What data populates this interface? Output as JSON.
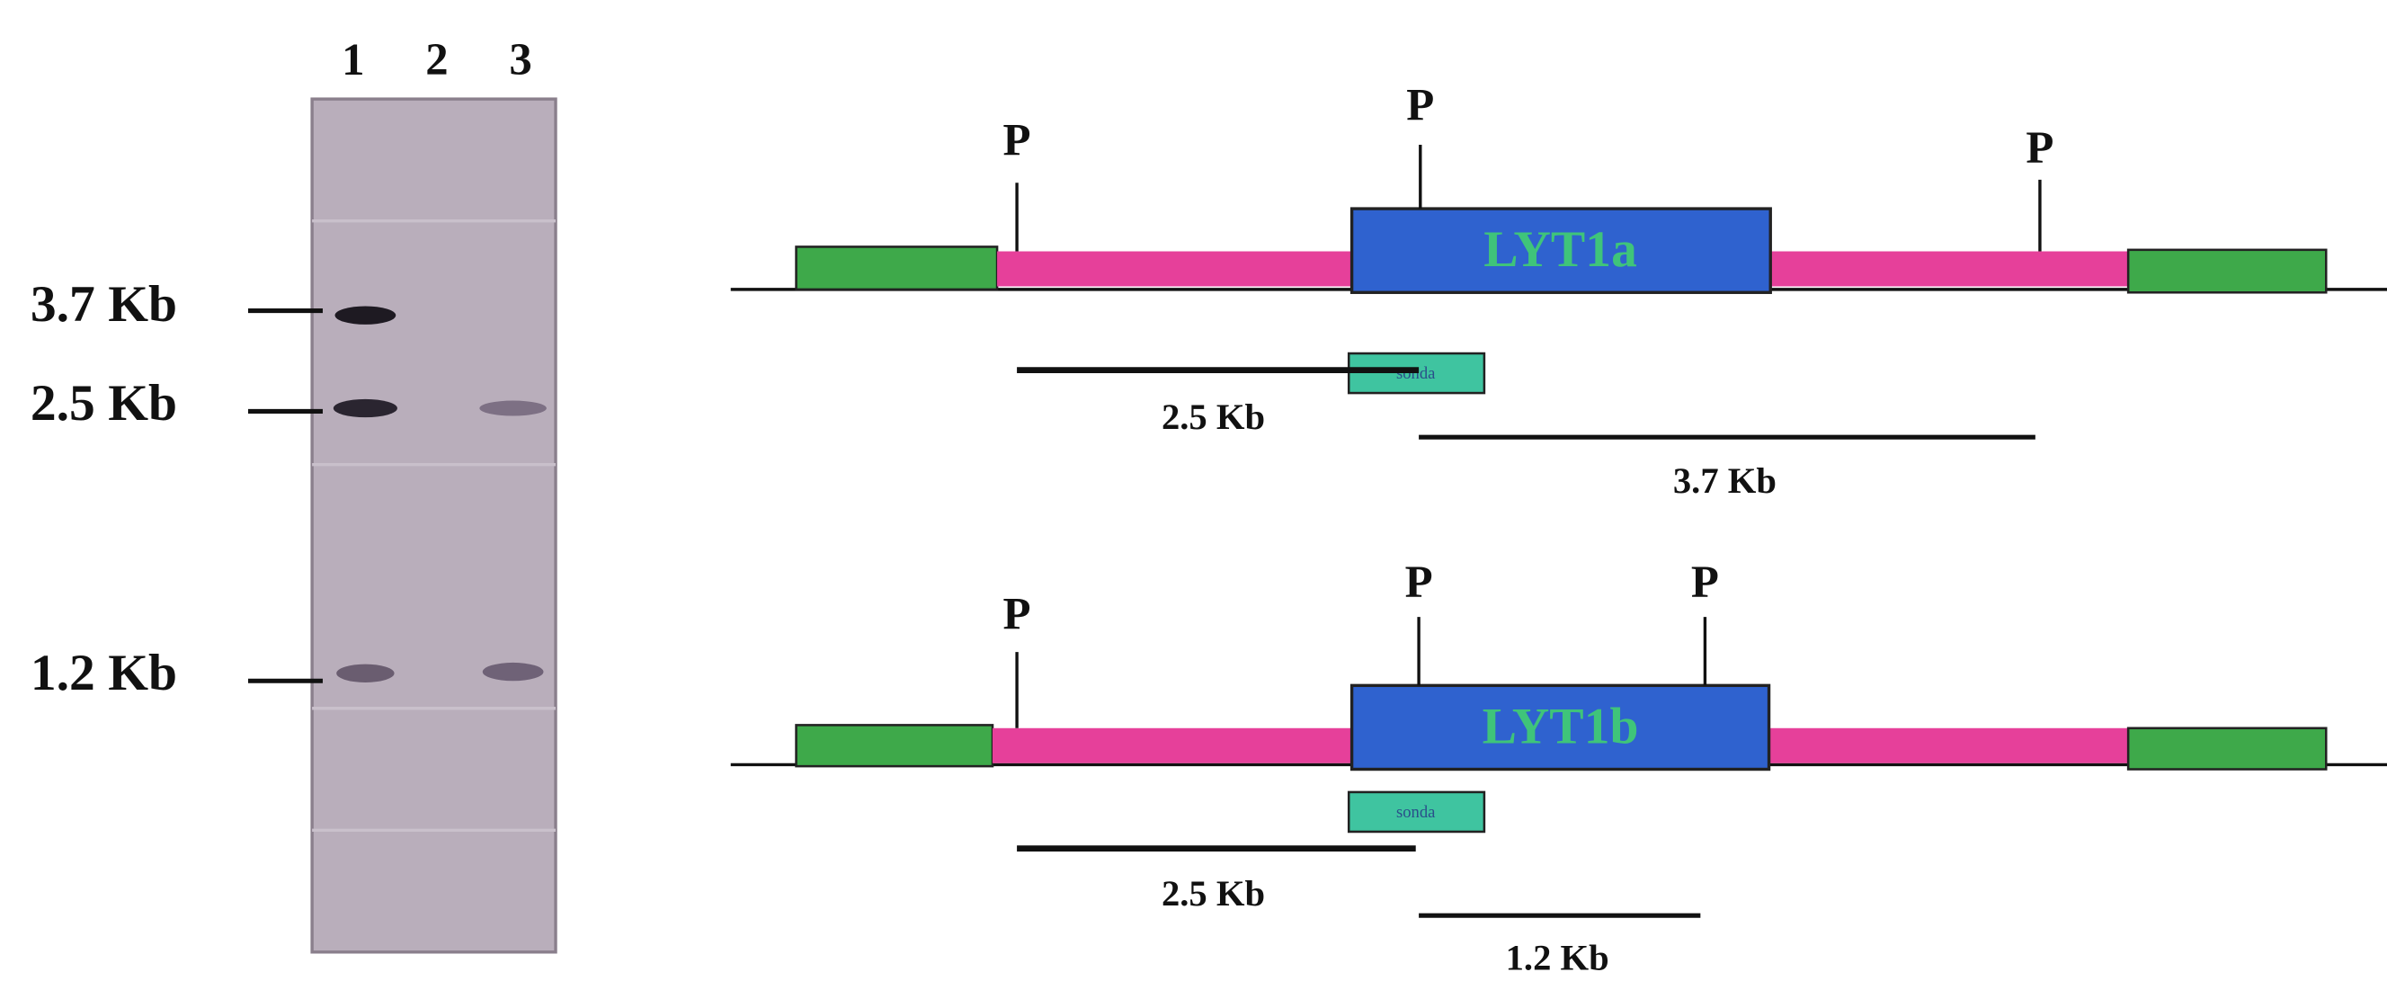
{
  "gel": {
    "lanes": [
      "1",
      "2",
      "3"
    ],
    "markers": [
      "3.7 Kb",
      "2.5 Kb",
      "1.2 Kb"
    ]
  },
  "maps": [
    {
      "gene": "LYT1a",
      "sites": [
        "P",
        "P",
        "P"
      ],
      "probe": "sonda",
      "fragments": [
        "2.5 Kb",
        "3.7 Kb"
      ]
    },
    {
      "gene": "LYT1b",
      "sites": [
        "P",
        "P",
        "P"
      ],
      "probe": "sonda",
      "fragments": [
        "2.5 Kb",
        "1.2 Kb"
      ]
    }
  ]
}
